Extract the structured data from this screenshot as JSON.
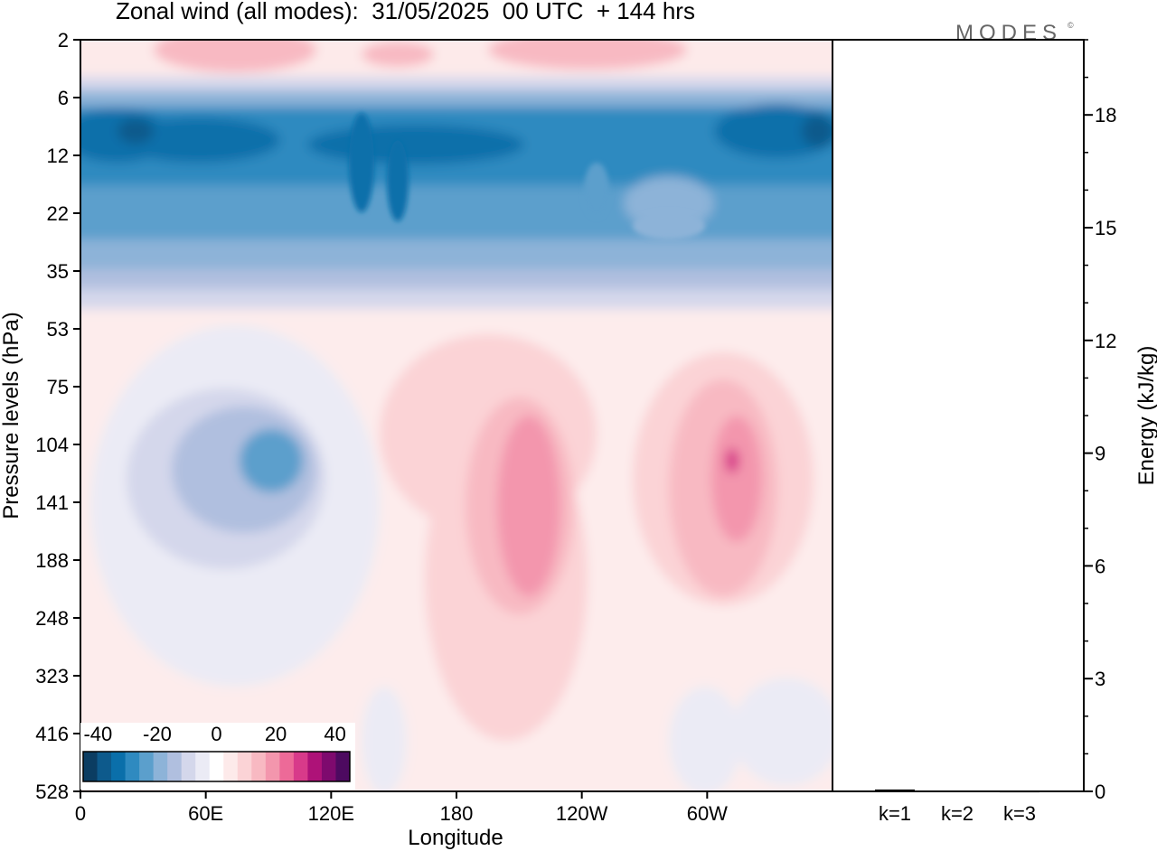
{
  "chart_data": {
    "type": "heatmap",
    "title": "Zonal wind (all modes):  31/05/2025  00 UTC  + 144 hrs",
    "logo": "MODES",
    "xlabel": "Longitude",
    "ylabel": "Pressure levels (hPa)",
    "x_ticks": [
      "0",
      "60E",
      "120E",
      "180",
      "120W",
      "60W"
    ],
    "x_tick_degrees": [
      0,
      60,
      120,
      180,
      240,
      300
    ],
    "xlim": [
      0,
      360
    ],
    "y_ticks": [
      "2",
      "6",
      "12",
      "22",
      "35",
      "53",
      "75",
      "104",
      "141",
      "188",
      "248",
      "323",
      "416",
      "528"
    ],
    "colorbar": {
      "ticks": [
        "-40",
        "-20",
        "0",
        "20",
        "40"
      ],
      "levels": [
        -45,
        -40,
        -35,
        -30,
        -25,
        -20,
        -15,
        -10,
        -5,
        0,
        5,
        10,
        15,
        20,
        25,
        30,
        35,
        40,
        45
      ],
      "colors": [
        "#0b3d62",
        "#0d5a8c",
        "#0a6faa",
        "#2f8ac0",
        "#5b9fcc",
        "#8db3d8",
        "#b0bfdf",
        "#d4d7eb",
        "#ebebf5",
        "#ffffff",
        "#fdeaea",
        "#fbd3d6",
        "#f8b9c2",
        "#f396ad",
        "#ed6a98",
        "#d83a8a",
        "#ae1278",
        "#7e0a6e",
        "#4d0a60"
      ]
    },
    "right_panel": {
      "ylabel": "Energy (kJ/kg)",
      "y_ticks": [
        0,
        3,
        6,
        9,
        12,
        15,
        18
      ],
      "ylim": [
        0,
        20
      ],
      "categories": [
        "k=1",
        "k=2",
        "k=3"
      ],
      "values": [
        0.05,
        0.02,
        0.01
      ]
    }
  }
}
